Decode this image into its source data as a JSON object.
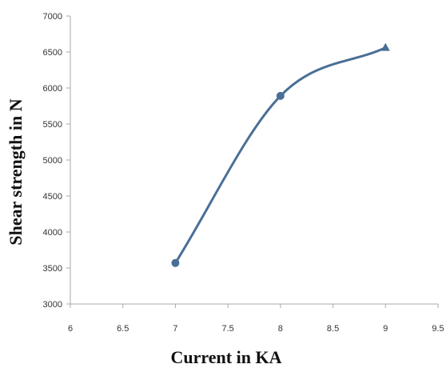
{
  "chart_data": {
    "type": "line",
    "title": "",
    "xlabel": "Current in KA",
    "ylabel": "Shear strength in N",
    "xlim": [
      6,
      9.5
    ],
    "ylim": [
      3000,
      7000
    ],
    "x_ticks": [
      "6",
      "6.5",
      "7",
      "7.5",
      "8",
      "8.5",
      "9",
      "9.5"
    ],
    "y_ticks": [
      "3000",
      "3500",
      "4000",
      "4500",
      "5000",
      "5500",
      "6000",
      "6500",
      "7000"
    ],
    "grid": false,
    "legend": "none",
    "series": [
      {
        "x": [
          7,
          8,
          9
        ],
        "y": [
          3570,
          5890,
          6560
        ],
        "color": "#4a6f96",
        "smooth": true,
        "markers": [
          "circle",
          "circle",
          "triangle"
        ]
      }
    ]
  }
}
